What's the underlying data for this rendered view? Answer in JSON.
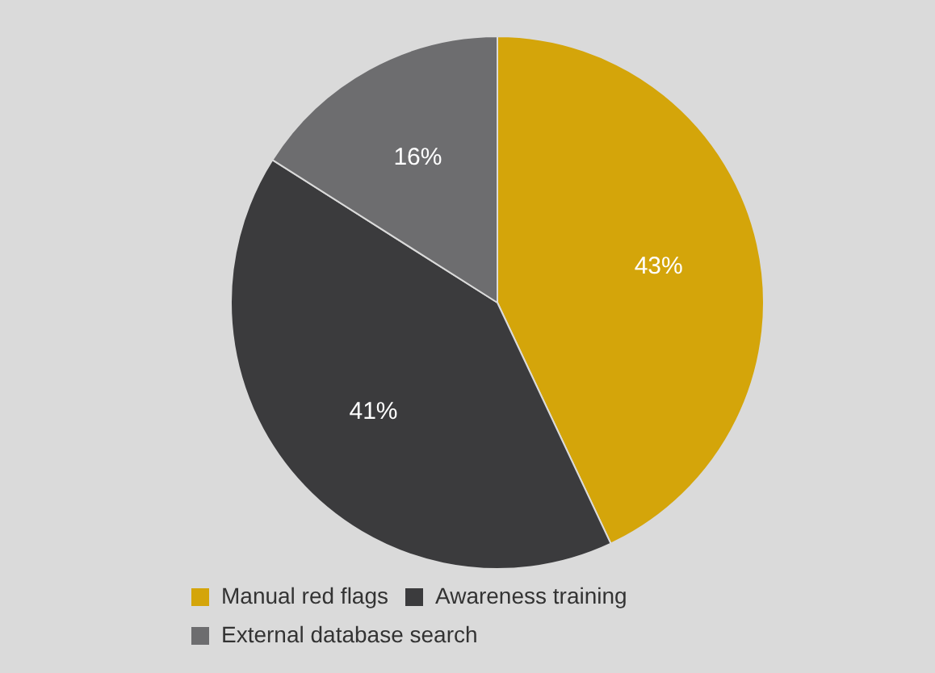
{
  "chart_data": {
    "type": "pie",
    "categories": [
      "Manual red flags",
      "Awareness training",
      "External database search"
    ],
    "values": [
      43,
      41,
      16
    ],
    "colors": [
      "#d4a50a",
      "#3b3b3d",
      "#6d6d6f"
    ],
    "value_labels": [
      "43%",
      "41%",
      "16%"
    ],
    "legend": "bottom"
  }
}
